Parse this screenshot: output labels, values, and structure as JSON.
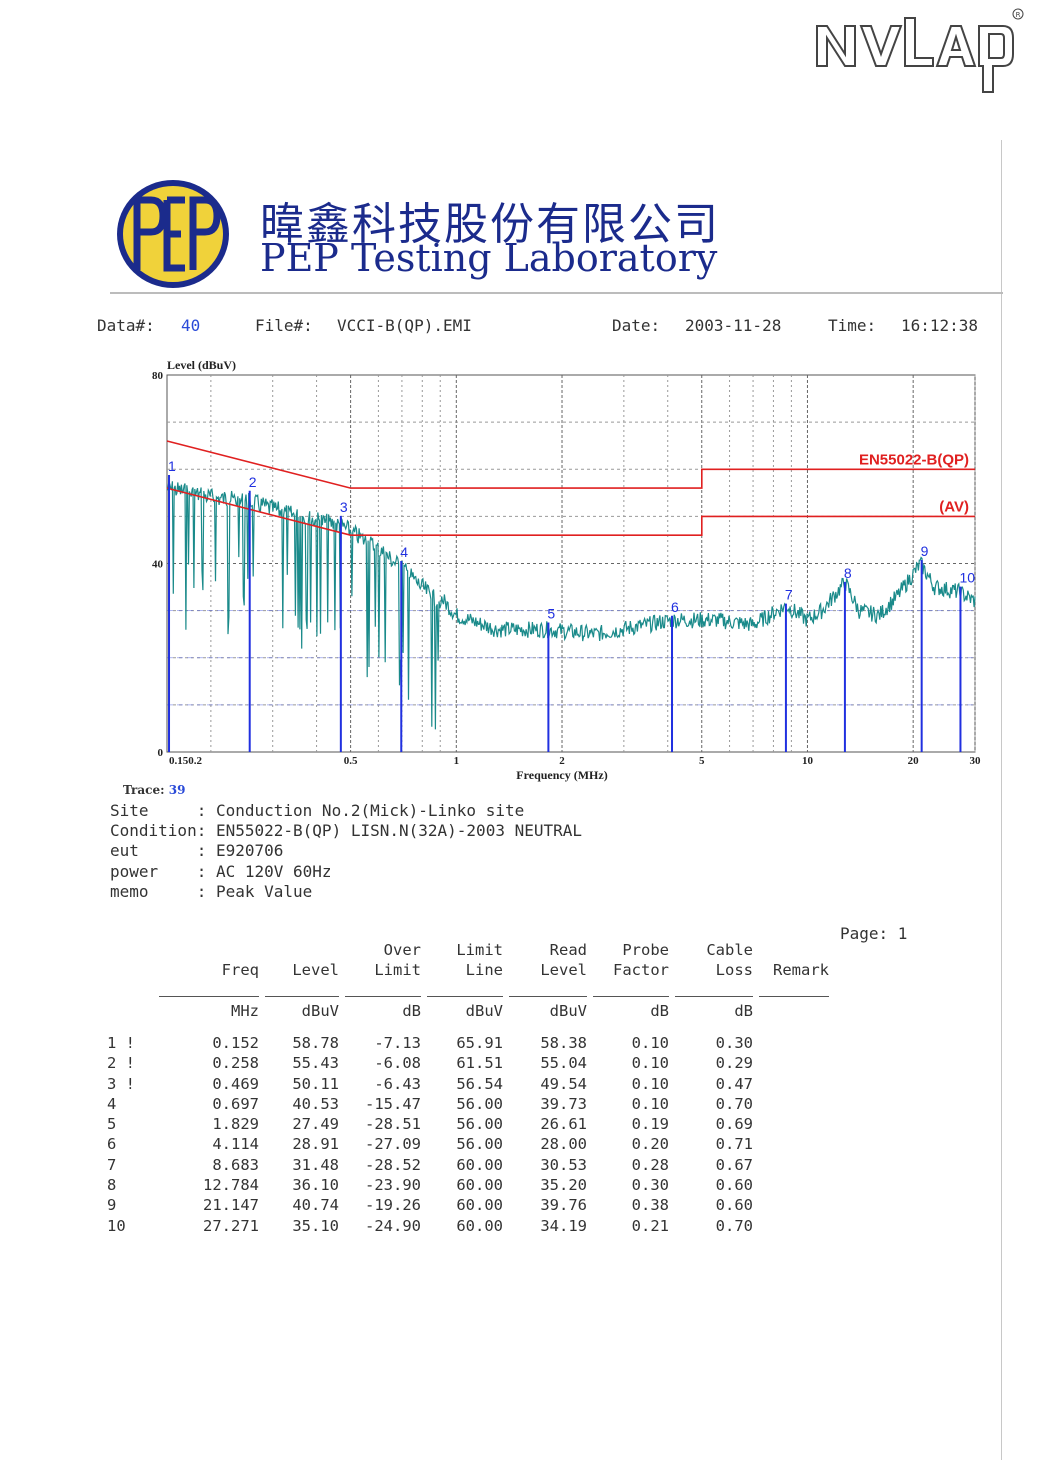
{
  "header": {
    "brand_logo_text": "NVLAP",
    "company_cn": "暐鑫科技股份有限公司",
    "company_en": "PEP Testing Laboratory",
    "logo_text": "PEP",
    "data_label": "Data#:",
    "data_no": "40",
    "file_label": "File#:",
    "file_name": "VCCI-B(QP).EMI",
    "date_label": "Date:",
    "date": "2003-11-28",
    "time_label": "Time:",
    "time": "16:12:38"
  },
  "trace": {
    "label": "Trace:",
    "value": "39"
  },
  "info": [
    {
      "key": "Site     ",
      "value": ": Conduction No.2(Mick)-Linko site"
    },
    {
      "key": "Condition",
      "value": ": EN55022-B(QP) LISN.N(32A)-2003 NEUTRAL"
    },
    {
      "key": "eut      ",
      "value": ": E920706"
    },
    {
      "key": "power    ",
      "value": ": AC 120V 60Hz"
    },
    {
      "key": "memo     ",
      "value": ": Peak Value"
    }
  ],
  "page_label": "Page: 1",
  "table": {
    "headers": [
      [
        "",
        "",
        ""
      ],
      [
        "",
        "Freq",
        "MHz"
      ],
      [
        "",
        "Level",
        "dBuV"
      ],
      [
        "Over",
        "Limit",
        "dB"
      ],
      [
        "Limit",
        "Line",
        "dBuV"
      ],
      [
        "Read",
        "Level",
        "dBuV"
      ],
      [
        "Probe",
        "Factor",
        "dB"
      ],
      [
        "Cable",
        "Loss",
        "dB"
      ],
      [
        "",
        "Remark",
        ""
      ]
    ],
    "rows": [
      [
        "1 !",
        "0.152",
        "58.78",
        "-7.13",
        "65.91",
        "58.38",
        "0.10",
        "0.30",
        ""
      ],
      [
        "2 !",
        "0.258",
        "55.43",
        "-6.08",
        "61.51",
        "55.04",
        "0.10",
        "0.29",
        ""
      ],
      [
        "3 !",
        "0.469",
        "50.11",
        "-6.43",
        "56.54",
        "49.54",
        "0.10",
        "0.47",
        ""
      ],
      [
        "4  ",
        "0.697",
        "40.53",
        "-15.47",
        "56.00",
        "39.73",
        "0.10",
        "0.70",
        ""
      ],
      [
        "5  ",
        "1.829",
        "27.49",
        "-28.51",
        "56.00",
        "26.61",
        "0.19",
        "0.69",
        ""
      ],
      [
        "6  ",
        "4.114",
        "28.91",
        "-27.09",
        "56.00",
        "28.00",
        "0.20",
        "0.71",
        ""
      ],
      [
        "7  ",
        "8.683",
        "31.48",
        "-28.52",
        "60.00",
        "30.53",
        "0.28",
        "0.67",
        ""
      ],
      [
        "8  ",
        "12.784",
        "36.10",
        "-23.90",
        "60.00",
        "35.20",
        "0.30",
        "0.60",
        ""
      ],
      [
        "9  ",
        "21.147",
        "40.74",
        "-19.26",
        "60.00",
        "39.76",
        "0.38",
        "0.60",
        ""
      ],
      [
        "10 ",
        "27.271",
        "35.10",
        "-24.90",
        "60.00",
        "34.19",
        "0.21",
        "0.70",
        ""
      ]
    ]
  },
  "chart_data": {
    "type": "line",
    "title": "",
    "ylabel": "Level (dBuV)",
    "xlabel": "Frequency (MHz)",
    "xscale": "log",
    "xlim": [
      0.15,
      30
    ],
    "ylim": [
      0,
      80
    ],
    "y_ticks": [
      "0",
      "40",
      "80"
    ],
    "x_ticks": [
      {
        "value": 0.15,
        "label": "0.150.2"
      },
      {
        "value": 0.5,
        "label": "0.5"
      },
      {
        "value": 1,
        "label": "1"
      },
      {
        "value": 2,
        "label": "2"
      },
      {
        "value": 5,
        "label": "5"
      },
      {
        "value": 10,
        "label": "10"
      },
      {
        "value": 20,
        "label": "20"
      },
      {
        "value": 30,
        "label": "30"
      }
    ],
    "grid": true,
    "limit_lines": [
      {
        "name": "EN55022-B(QP)",
        "color": "#e02020",
        "points": [
          [
            0.15,
            66
          ],
          [
            0.5,
            56
          ],
          [
            5,
            56
          ],
          [
            5,
            60
          ],
          [
            30,
            60
          ]
        ]
      },
      {
        "name": "(AV)",
        "color": "#e02020",
        "points": [
          [
            0.15,
            56
          ],
          [
            0.5,
            46
          ],
          [
            5,
            46
          ],
          [
            5,
            50
          ],
          [
            30,
            50
          ]
        ]
      }
    ],
    "trace": {
      "name": "Trace 39",
      "color": "#1a8a8a",
      "envelope": [
        [
          0.15,
          58
        ],
        [
          0.2,
          56
        ],
        [
          0.26,
          55
        ],
        [
          0.35,
          52
        ],
        [
          0.47,
          50
        ],
        [
          0.6,
          45
        ],
        [
          0.7,
          41
        ],
        [
          0.85,
          35
        ],
        [
          1.0,
          29
        ],
        [
          1.3,
          26
        ],
        [
          1.8,
          26
        ],
        [
          2.5,
          25
        ],
        [
          3.5,
          27
        ],
        [
          4.1,
          28
        ],
        [
          5.5,
          28
        ],
        [
          7,
          27
        ],
        [
          8.7,
          31
        ],
        [
          10,
          28
        ],
        [
          11,
          30
        ],
        [
          12.8,
          36
        ],
        [
          14,
          30
        ],
        [
          16,
          29
        ],
        [
          18,
          33
        ],
        [
          21,
          40
        ],
        [
          23,
          35
        ],
        [
          27,
          34
        ],
        [
          30,
          32
        ]
      ]
    },
    "markers": [
      {
        "label": "1",
        "freq": 0.152,
        "level": 58.78
      },
      {
        "label": "2",
        "freq": 0.258,
        "level": 55.43
      },
      {
        "label": "3",
        "freq": 0.469,
        "level": 50.11
      },
      {
        "label": "4",
        "freq": 0.697,
        "level": 40.53
      },
      {
        "label": "5",
        "freq": 1.829,
        "level": 27.49
      },
      {
        "label": "6",
        "freq": 4.114,
        "level": 28.91
      },
      {
        "label": "7",
        "freq": 8.683,
        "level": 31.48
      },
      {
        "label": "8",
        "freq": 12.784,
        "level": 36.1
      },
      {
        "label": "9",
        "freq": 21.147,
        "level": 40.74
      },
      {
        "label": "10",
        "freq": 27.271,
        "level": 35.1
      }
    ],
    "marker_color": "#2030e0"
  }
}
